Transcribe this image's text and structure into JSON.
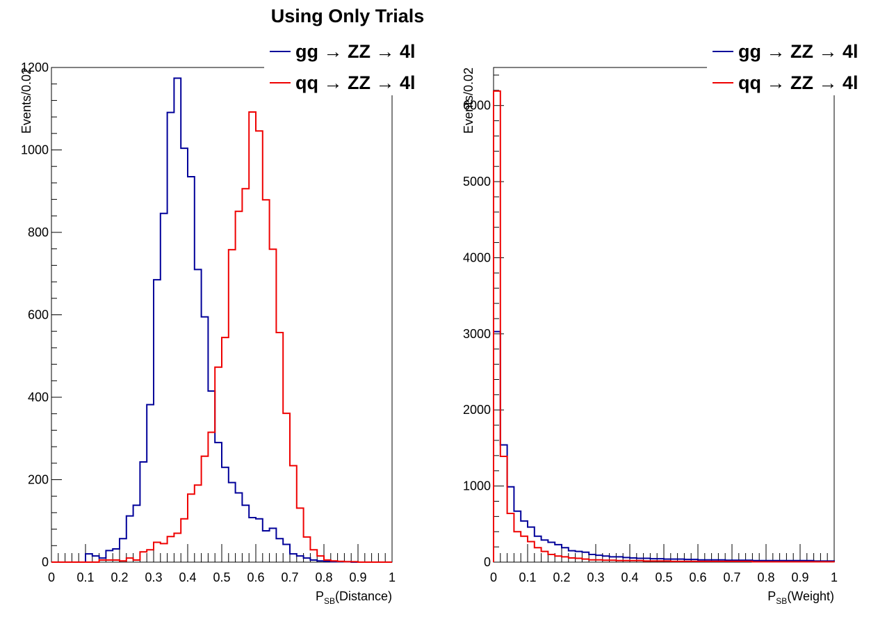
{
  "title": "Using Only Trials",
  "colors": {
    "gg": "#000099",
    "qq": "#ee0000",
    "axis": "#000000",
    "background": "#ffffff"
  },
  "chart_data": [
    {
      "type": "histogram",
      "xlabel": {
        "main": "P",
        "sub": "SB",
        "rest": "(Distance)"
      },
      "ylabel": "Events/0.02",
      "xlim": [
        0,
        1
      ],
      "ylim": [
        0,
        1200
      ],
      "x_ticks": [
        "0",
        "0.1",
        "0.2",
        "0.3",
        "0.4",
        "0.5",
        "0.6",
        "0.7",
        "0.8",
        "0.9",
        "1"
      ],
      "y_ticks": [
        "0",
        "200",
        "400",
        "600",
        "800",
        "1000",
        "1200"
      ],
      "y_tick_values": [
        0,
        200,
        400,
        600,
        800,
        1000,
        1200
      ],
      "bin_width": 0.02,
      "legend": {
        "placement": "top-right",
        "entries": [
          {
            "series": "gg",
            "label": "gg → ZZ → 4l"
          },
          {
            "series": "qq",
            "label": "qq → ZZ → 4l"
          }
        ]
      },
      "series": [
        {
          "key": "gg",
          "color": "#000099",
          "values": [
            0,
            0,
            0,
            0,
            0,
            20,
            15,
            10,
            28,
            32,
            57,
            112,
            138,
            243,
            382,
            685,
            846,
            1091,
            1174,
            1004,
            935,
            710,
            595,
            415,
            290,
            230,
            193,
            168,
            138,
            108,
            105,
            76,
            82,
            57,
            43,
            20,
            15,
            10,
            5,
            3,
            2,
            1,
            1,
            1,
            0,
            0,
            0,
            0,
            0,
            0
          ]
        },
        {
          "key": "qq",
          "color": "#ee0000",
          "values": [
            0,
            0,
            0,
            0,
            0,
            0,
            0,
            5,
            5,
            5,
            3,
            10,
            5,
            25,
            30,
            48,
            45,
            62,
            70,
            105,
            165,
            187,
            257,
            315,
            473,
            545,
            758,
            851,
            906,
            1092,
            1046,
            879,
            759,
            557,
            361,
            234,
            131,
            61,
            30,
            15,
            5,
            3,
            2,
            1,
            1,
            0,
            0,
            0,
            0,
            0
          ]
        }
      ]
    },
    {
      "type": "histogram",
      "xlabel": {
        "main": "P",
        "sub": "SB",
        "rest": "(Weight)"
      },
      "ylabel": "Events/0.02",
      "xlim": [
        0,
        1
      ],
      "ylim": [
        0,
        6500
      ],
      "x_ticks": [
        "0",
        "0.1",
        "0.2",
        "0.3",
        "0.4",
        "0.5",
        "0.6",
        "0.7",
        "0.8",
        "0.9",
        "1"
      ],
      "y_ticks": [
        "0",
        "1000",
        "2000",
        "3000",
        "4000",
        "5000",
        "6000"
      ],
      "y_tick_values": [
        0,
        1000,
        2000,
        3000,
        4000,
        5000,
        6000
      ],
      "bin_width": 0.02,
      "legend": {
        "placement": "top-right",
        "entries": [
          {
            "series": "gg",
            "label": "gg → ZZ → 4l"
          },
          {
            "series": "qq",
            "label": "qq → ZZ → 4l"
          }
        ]
      },
      "series": [
        {
          "key": "gg",
          "color": "#000099",
          "values": [
            3030,
            1540,
            990,
            670,
            540,
            460,
            340,
            290,
            260,
            230,
            190,
            150,
            140,
            130,
            100,
            90,
            80,
            70,
            70,
            60,
            55,
            50,
            50,
            45,
            45,
            40,
            40,
            40,
            35,
            35,
            30,
            30,
            30,
            30,
            25,
            25,
            25,
            25,
            20,
            20,
            20,
            20,
            20,
            20,
            20,
            20,
            20,
            15,
            15,
            15
          ]
        },
        {
          "key": "qq",
          "color": "#ee0000",
          "values": [
            6190,
            1390,
            640,
            400,
            340,
            270,
            190,
            140,
            100,
            80,
            70,
            55,
            50,
            40,
            30,
            30,
            25,
            25,
            20,
            20,
            20,
            20,
            15,
            15,
            15,
            15,
            10,
            10,
            10,
            10,
            10,
            10,
            10,
            10,
            10,
            10,
            10,
            10,
            5,
            5,
            5,
            5,
            5,
            5,
            5,
            5,
            5,
            5,
            5,
            5
          ]
        }
      ]
    }
  ]
}
